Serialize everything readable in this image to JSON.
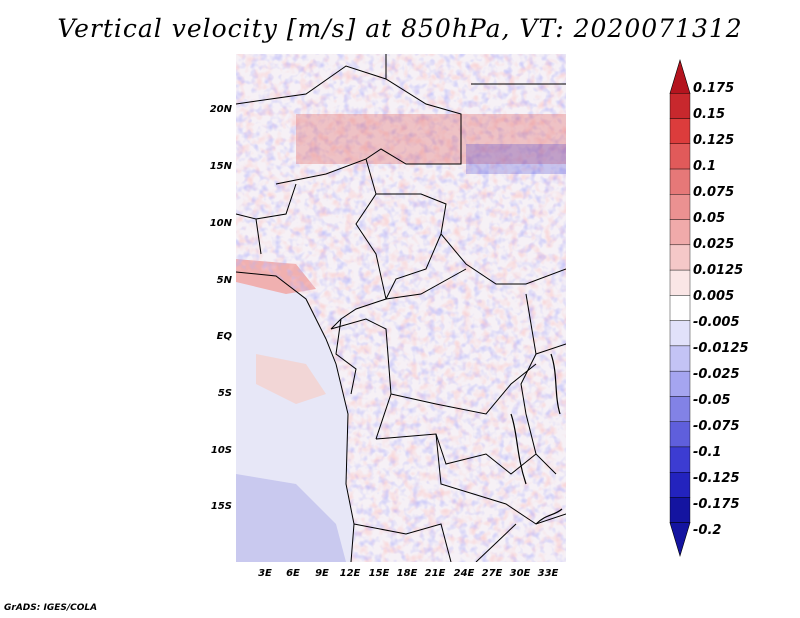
{
  "title": "Vertical velocity [m/s] at 850hPa, VT: 2020071312",
  "lat_labels": [
    "20N",
    "15N",
    "10N",
    "5N",
    "EQ",
    "5S",
    "10S",
    "15S"
  ],
  "lon_labels": [
    "3E",
    "6E",
    "9E",
    "12E",
    "15E",
    "18E",
    "21E",
    "24E",
    "27E",
    "30E",
    "33E"
  ],
  "colorbar": {
    "levels": [
      "0.175",
      "0.15",
      "0.125",
      "0.1",
      "0.075",
      "0.05",
      "0.025",
      "0.0125",
      "0.005",
      "-0.005",
      "-0.0125",
      "-0.025",
      "-0.05",
      "-0.075",
      "-0.1",
      "-0.125",
      "-0.175",
      "-0.2"
    ],
    "colors": [
      "#b4141e",
      "#c8282d",
      "#dc3c3c",
      "#e15a5a",
      "#e67878",
      "#eb9191",
      "#f0aaaa",
      "#f5c8c8",
      "#fae6e6",
      "#ffffff",
      "#e1e1fa",
      "#c3c3f5",
      "#a5a5f0",
      "#8282e6",
      "#5f5fdc",
      "#3c3cd2",
      "#2323be",
      "#1414a0"
    ]
  },
  "credit": "GrADS: IGES/COLA"
}
